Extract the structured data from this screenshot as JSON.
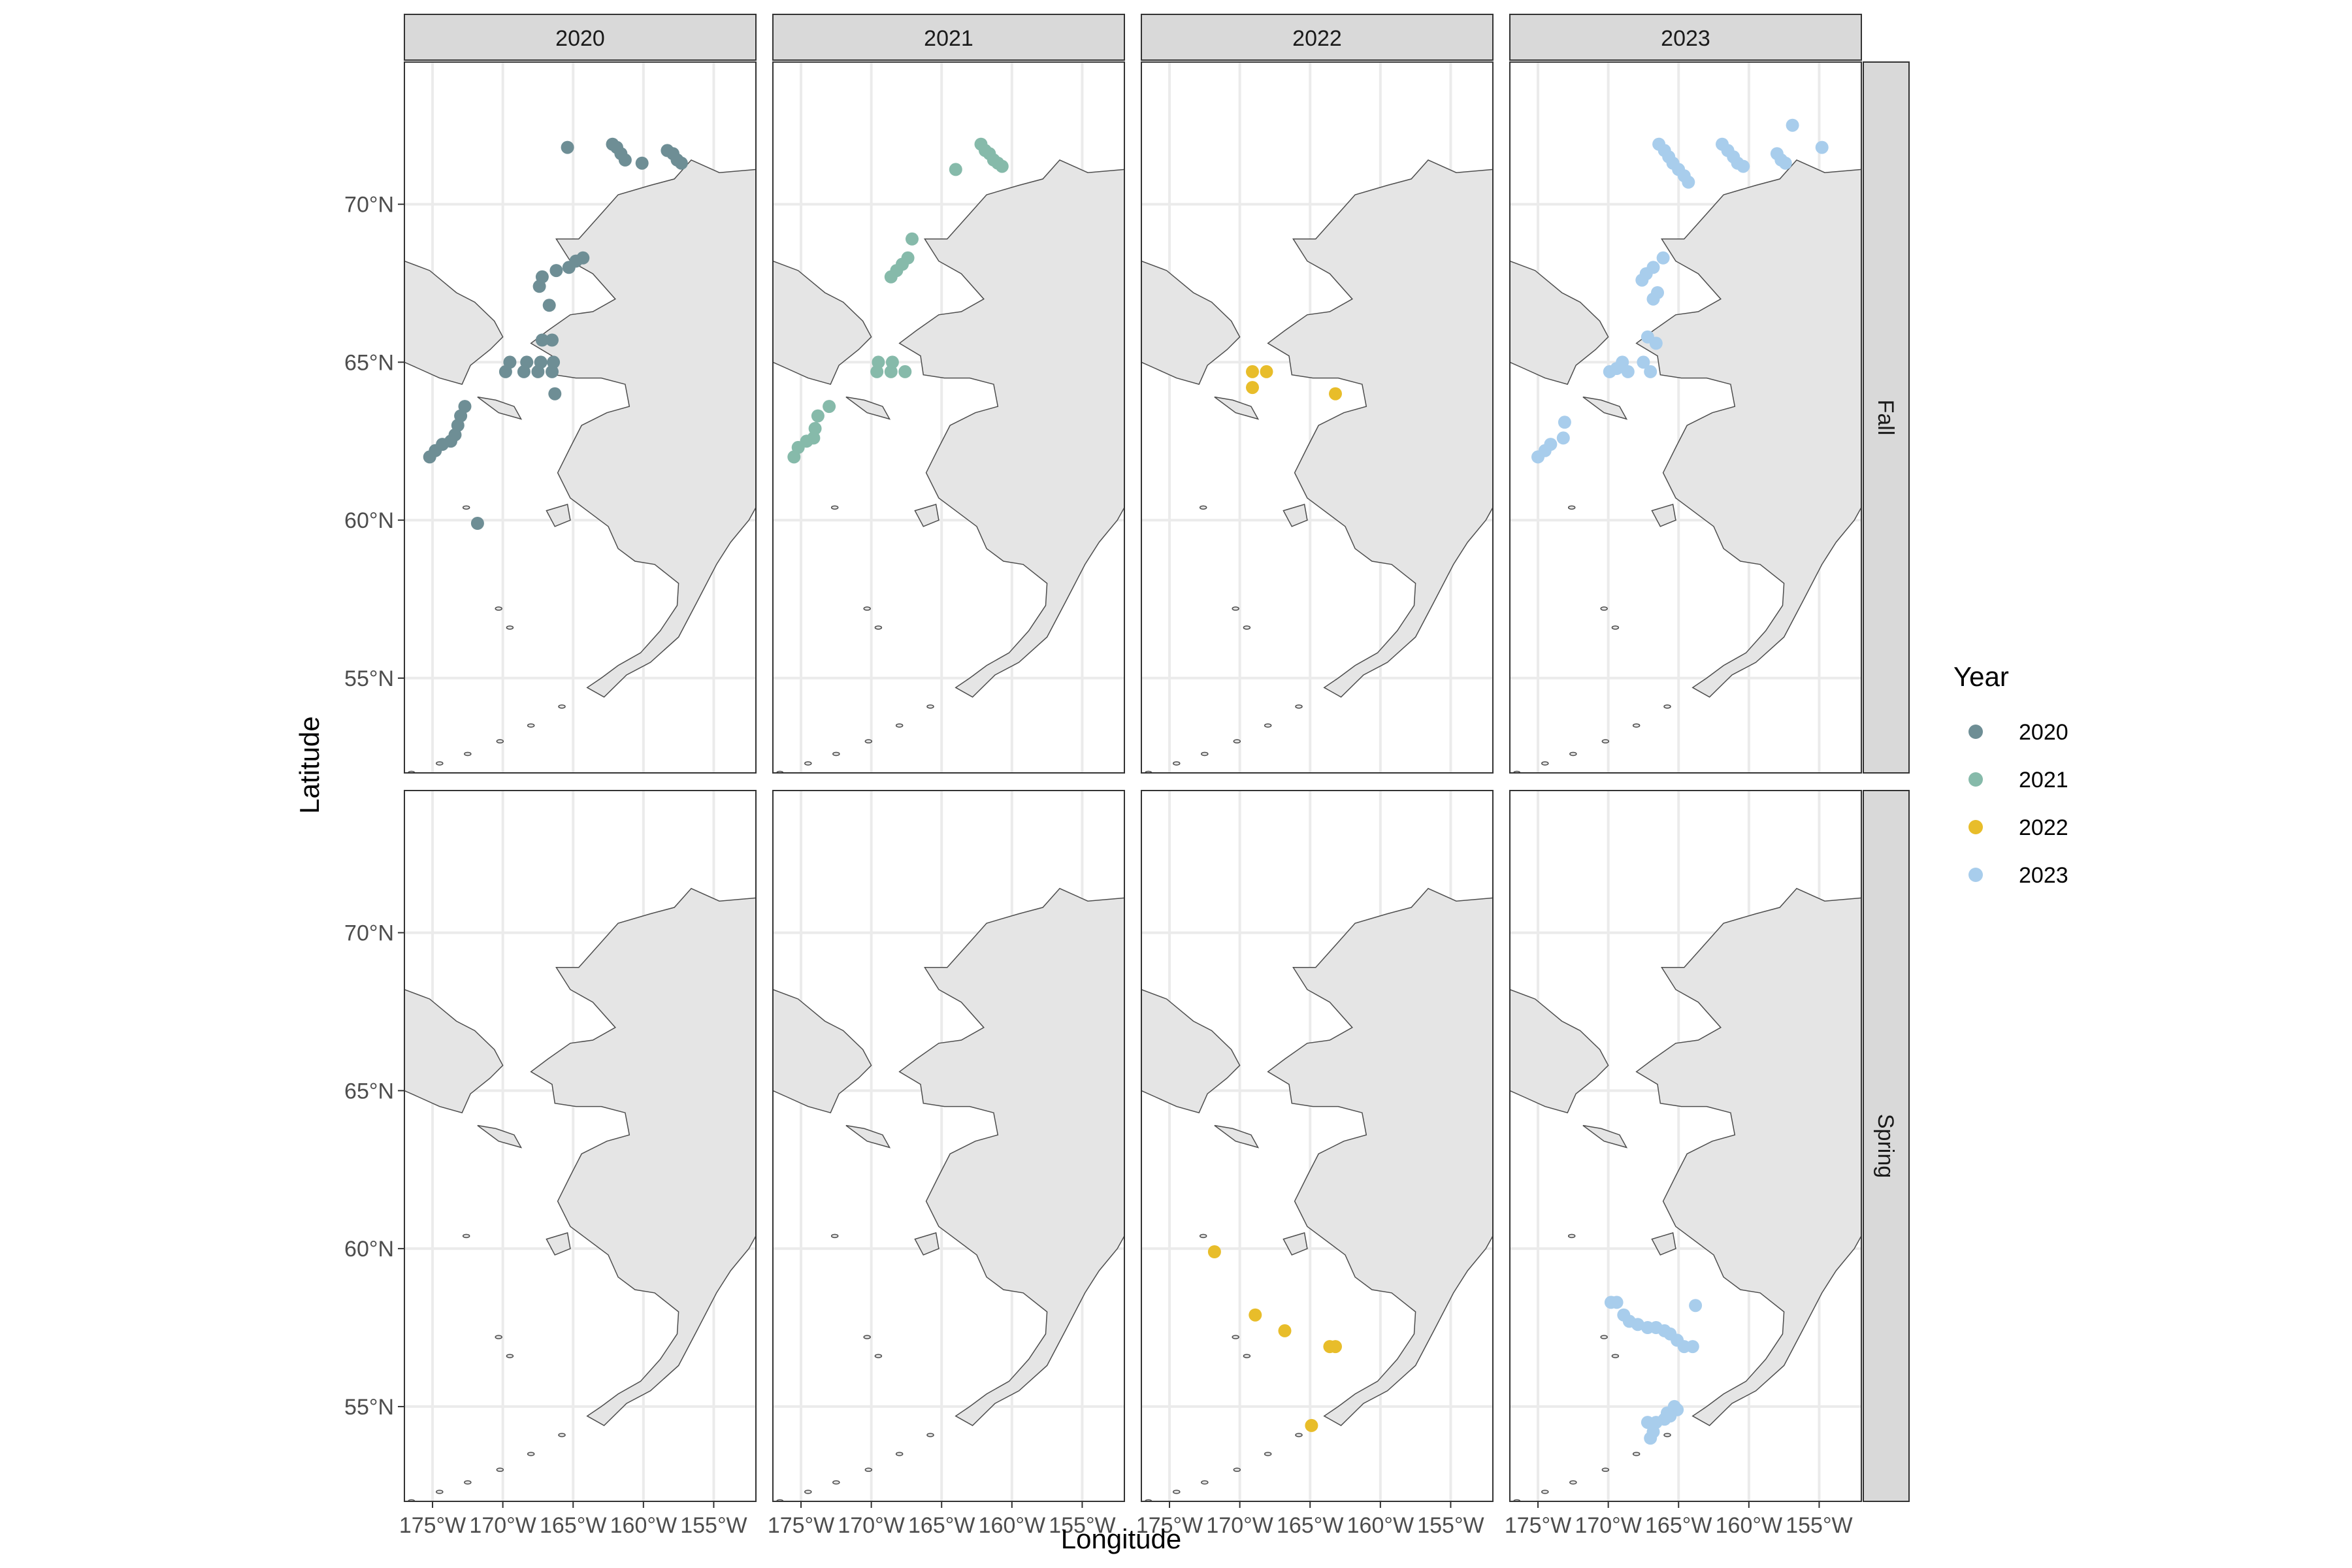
{
  "chart_data": {
    "type": "scatter",
    "title": "",
    "xlabel": "Longitude",
    "ylabel": "Latitude",
    "facet_columns": [
      "2020",
      "2021",
      "2022",
      "2023"
    ],
    "facet_rows": [
      "Fall",
      "Spring"
    ],
    "xlim": [
      -177,
      -152
    ],
    "ylim": [
      52,
      74.5
    ],
    "x_ticks": [
      -175,
      -170,
      -165,
      -160,
      -155
    ],
    "x_tick_labels": [
      "175°W",
      "170°W",
      "165°W",
      "160°W",
      "155°W"
    ],
    "y_ticks": [
      55,
      60,
      65,
      70
    ],
    "y_tick_labels": [
      "55°N",
      "60°N",
      "65°N",
      "70°N"
    ],
    "grid": true,
    "legend": {
      "title": "Year",
      "position": "right",
      "entries": [
        "2020",
        "2021",
        "2022",
        "2023"
      ]
    },
    "colors": {
      "2020": "#6E8E95",
      "2021": "#86BAAA",
      "2022": "#E8BD2A",
      "2023": "#A8CDEC"
    },
    "land_color": "#E5E5E5",
    "series": [
      {
        "name": "2020",
        "column": "2020",
        "row": "Fall",
        "points": [
          [
            -165.4,
            71.8
          ],
          [
            -162.2,
            71.9
          ],
          [
            -161.9,
            71.8
          ],
          [
            -161.6,
            71.6
          ],
          [
            -161.3,
            71.4
          ],
          [
            -160.1,
            71.3
          ],
          [
            -158.3,
            71.7
          ],
          [
            -157.9,
            71.6
          ],
          [
            -157.6,
            71.4
          ],
          [
            -157.3,
            71.3
          ],
          [
            -164.3,
            68.3
          ],
          [
            -164.8,
            68.2
          ],
          [
            -165.3,
            68.0
          ],
          [
            -166.2,
            67.9
          ],
          [
            -167.2,
            67.7
          ],
          [
            -167.4,
            67.4
          ],
          [
            -166.7,
            66.8
          ],
          [
            -167.2,
            65.7
          ],
          [
            -166.5,
            65.7
          ],
          [
            -166.4,
            65.0
          ],
          [
            -167.3,
            65.0
          ],
          [
            -168.3,
            65.0
          ],
          [
            -169.5,
            65.0
          ],
          [
            -166.5,
            64.7
          ],
          [
            -167.5,
            64.7
          ],
          [
            -168.5,
            64.7
          ],
          [
            -169.8,
            64.7
          ],
          [
            -166.3,
            64.0
          ],
          [
            -172.7,
            63.6
          ],
          [
            -173.0,
            63.3
          ],
          [
            -173.2,
            63.0
          ],
          [
            -173.4,
            62.7
          ],
          [
            -173.7,
            62.5
          ],
          [
            -174.3,
            62.4
          ],
          [
            -174.8,
            62.2
          ],
          [
            -175.2,
            62.0
          ],
          [
            -171.8,
            59.9
          ]
        ]
      },
      {
        "name": "2021",
        "column": "2021",
        "row": "Fall",
        "points": [
          [
            -164.0,
            71.1
          ],
          [
            -162.2,
            71.9
          ],
          [
            -161.9,
            71.7
          ],
          [
            -161.6,
            71.6
          ],
          [
            -161.3,
            71.4
          ],
          [
            -161.0,
            71.3
          ],
          [
            -160.7,
            71.2
          ],
          [
            -167.1,
            68.9
          ],
          [
            -167.4,
            68.3
          ],
          [
            -167.8,
            68.1
          ],
          [
            -168.2,
            67.9
          ],
          [
            -168.6,
            67.7
          ],
          [
            -169.5,
            65.0
          ],
          [
            -168.5,
            65.0
          ],
          [
            -167.6,
            64.7
          ],
          [
            -168.6,
            64.7
          ],
          [
            -169.6,
            64.7
          ],
          [
            -173.0,
            63.6
          ],
          [
            -173.8,
            63.3
          ],
          [
            -174.0,
            62.9
          ],
          [
            -174.1,
            62.6
          ],
          [
            -174.6,
            62.5
          ],
          [
            -175.2,
            62.3
          ],
          [
            -175.5,
            62.0
          ]
        ]
      },
      {
        "name": "2022",
        "column": "2022",
        "row": "Fall",
        "points": [
          [
            -169.1,
            64.7
          ],
          [
            -168.1,
            64.7
          ],
          [
            -169.1,
            64.2
          ],
          [
            -163.2,
            64.0
          ]
        ]
      },
      {
        "name": "2023",
        "column": "2023",
        "row": "Fall",
        "points": [
          [
            -166.4,
            71.9
          ],
          [
            -166.0,
            71.7
          ],
          [
            -165.7,
            71.5
          ],
          [
            -165.4,
            71.3
          ],
          [
            -165.0,
            71.1
          ],
          [
            -164.6,
            70.9
          ],
          [
            -164.3,
            70.7
          ],
          [
            -161.9,
            71.9
          ],
          [
            -161.5,
            71.7
          ],
          [
            -161.1,
            71.5
          ],
          [
            -160.8,
            71.3
          ],
          [
            -160.4,
            71.2
          ],
          [
            -158.0,
            71.6
          ],
          [
            -157.7,
            71.4
          ],
          [
            -157.4,
            71.3
          ],
          [
            -156.9,
            72.5
          ],
          [
            -154.8,
            71.8
          ],
          [
            -166.1,
            68.3
          ],
          [
            -166.8,
            68.0
          ],
          [
            -167.3,
            67.8
          ],
          [
            -167.6,
            67.6
          ],
          [
            -166.5,
            67.2
          ],
          [
            -166.8,
            67.0
          ],
          [
            -167.2,
            65.8
          ],
          [
            -166.6,
            65.6
          ],
          [
            -167.5,
            65.0
          ],
          [
            -169.0,
            65.0
          ],
          [
            -169.4,
            64.8
          ],
          [
            -169.9,
            64.7
          ],
          [
            -168.6,
            64.7
          ],
          [
            -167.0,
            64.7
          ],
          [
            -173.1,
            63.1
          ],
          [
            -173.2,
            62.6
          ],
          [
            -174.1,
            62.4
          ],
          [
            -174.5,
            62.2
          ],
          [
            -175.0,
            62.0
          ]
        ]
      },
      {
        "name": "2022",
        "column": "2022",
        "row": "Spring",
        "points": [
          [
            -171.8,
            59.9
          ],
          [
            -168.9,
            57.9
          ],
          [
            -166.8,
            57.4
          ],
          [
            -163.6,
            56.9
          ],
          [
            -163.2,
            56.9
          ],
          [
            -164.9,
            54.4
          ]
        ]
      },
      {
        "name": "2023",
        "column": "2023",
        "row": "Spring",
        "points": [
          [
            -169.8,
            58.3
          ],
          [
            -169.4,
            58.3
          ],
          [
            -168.9,
            57.9
          ],
          [
            -168.5,
            57.7
          ],
          [
            -167.9,
            57.6
          ],
          [
            -167.2,
            57.5
          ],
          [
            -166.6,
            57.5
          ],
          [
            -166.0,
            57.4
          ],
          [
            -165.6,
            57.3
          ],
          [
            -165.1,
            57.1
          ],
          [
            -164.6,
            56.9
          ],
          [
            -164.0,
            56.9
          ],
          [
            -163.8,
            58.2
          ],
          [
            -165.3,
            55.0
          ],
          [
            -165.1,
            54.9
          ],
          [
            -165.6,
            54.7
          ],
          [
            -166.0,
            54.6
          ],
          [
            -166.6,
            54.5
          ],
          [
            -167.2,
            54.5
          ],
          [
            -166.8,
            54.2
          ],
          [
            -167.0,
            54.0
          ],
          [
            -165.8,
            54.8
          ]
        ]
      }
    ]
  }
}
